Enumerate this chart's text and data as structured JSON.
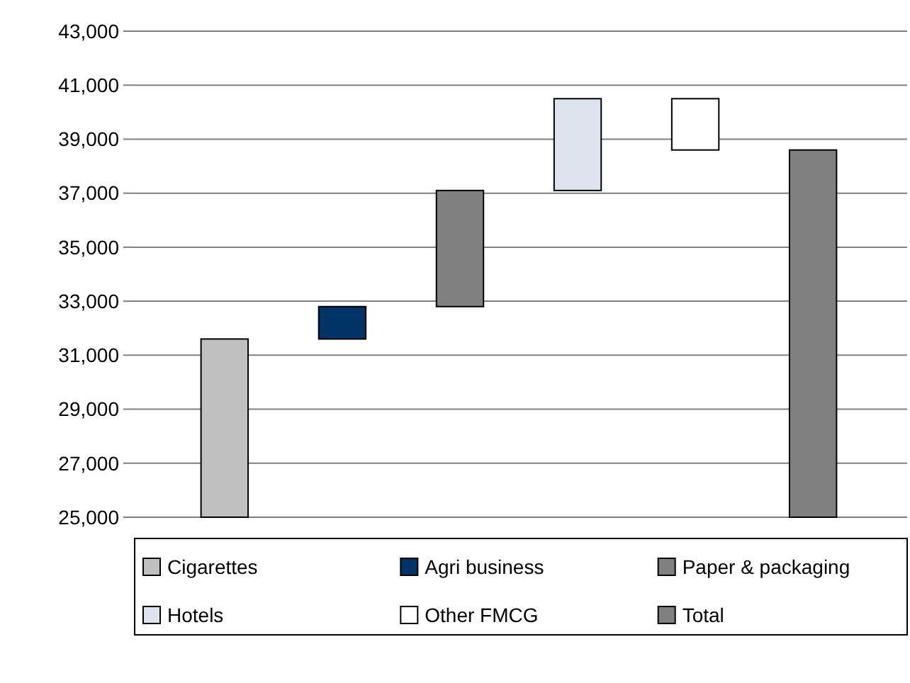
{
  "chart_data": {
    "type": "bar",
    "categories": [
      null,
      null,
      null,
      null,
      null,
      null
    ],
    "series": [
      {
        "name": "Cigarettes",
        "color": "#c0c0c0",
        "values": [
          6600,
          null,
          null,
          null,
          null,
          null
        ],
        "base": [
          25000,
          null,
          null,
          null,
          null,
          null
        ]
      },
      {
        "name": "Agri business",
        "color": "#003366",
        "values": [
          null,
          1200,
          null,
          null,
          null,
          null
        ],
        "base": [
          null,
          31600,
          null,
          null,
          null,
          null
        ]
      },
      {
        "name": "Paper & packaging",
        "color": "#808080",
        "values": [
          null,
          null,
          4300,
          null,
          null,
          null
        ],
        "base": [
          null,
          null,
          32800,
          null,
          null,
          null
        ]
      },
      {
        "name": "Hotels",
        "color": "#dde4ee",
        "values": [
          null,
          null,
          null,
          3400,
          null,
          null
        ],
        "base": [
          null,
          null,
          null,
          37100,
          null,
          null
        ]
      },
      {
        "name": "Other FMCG",
        "color": "#ffffff",
        "values": [
          null,
          null,
          null,
          null,
          -1900,
          null
        ],
        "base": [
          null,
          null,
          null,
          null,
          40500,
          null
        ]
      },
      {
        "name": "Total",
        "color": "#808080",
        "values": [
          null,
          null,
          null,
          null,
          null,
          13600
        ],
        "base": [
          null,
          null,
          null,
          null,
          null,
          25000
        ]
      }
    ],
    "ylim": [
      25000,
      43000
    ],
    "yticks": [
      {
        "value": 25000,
        "label": "25,000"
      },
      {
        "value": 27000,
        "label": "27,000"
      },
      {
        "value": 29000,
        "label": "29,000"
      },
      {
        "value": 31000,
        "label": "31,000"
      },
      {
        "value": 33000,
        "label": "33,000"
      },
      {
        "value": 35000,
        "label": "35,000"
      },
      {
        "value": 37000,
        "label": "37,000"
      },
      {
        "value": 39000,
        "label": "39,000"
      },
      {
        "value": 41000,
        "label": "41,000"
      },
      {
        "value": 43000,
        "label": "43,000"
      }
    ],
    "grid": "y",
    "legend": "bottom",
    "tick_labels": "y"
  }
}
